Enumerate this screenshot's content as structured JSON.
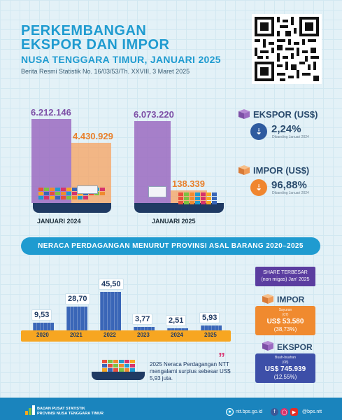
{
  "header": {
    "title_line1": "PERKEMBANGAN",
    "title_line2": "EKSPOR DAN IMPOR",
    "subtitle": "NUSA TENGGARA TIMUR, JANUARI 2025",
    "bulletin": "Berita Resmi Statistik No. 16/03/53/Th. XXVIII, 3 Maret 2025"
  },
  "colors": {
    "export": "#9b6bc1",
    "import": "#f7a15f",
    "accent_blue": "#1f9bd0",
    "bar_blue": "#3a66b7",
    "axis_orange": "#f7a621"
  },
  "chart_data": [
    {
      "type": "bar",
      "categories": [
        "JANUARI 2024",
        "JANUARI 2025"
      ],
      "series": [
        {
          "name": "EKSPOR (US$)",
          "values": [
            6212146,
            6073220
          ],
          "labels": [
            "6.212.146",
            "6.073.220"
          ]
        },
        {
          "name": "IMPOR (US$)",
          "values": [
            4430929,
            138339
          ],
          "labels": [
            "4.430.929",
            "138.339"
          ]
        }
      ]
    },
    {
      "type": "bar",
      "title": "NERACA PERDAGANGAN MENURUT PROVINSI ASAL BARANG 2020–2025",
      "categories": [
        "2020",
        "2021",
        "2022",
        "2023",
        "2024",
        "2025"
      ],
      "values": [
        9.53,
        28.7,
        45.5,
        3.77,
        2.51,
        5.93
      ],
      "labels": [
        "9,53",
        "28,70",
        "45,50",
        "3,77",
        "2,51",
        "5,93"
      ],
      "ylim": [
        0,
        50
      ]
    }
  ],
  "legend": {
    "export_title": "EKSPOR (US$)",
    "export_change": "2,24%",
    "export_note": "Dibanding Januari 2024",
    "import_title": "IMPOR (US$)",
    "import_change": "96,88%",
    "import_note": "Dibanding Januari 2024"
  },
  "share": {
    "heading_line1": "SHARE TERBESAR",
    "heading_line2": "(non migas) Jan' 2025",
    "import_title": "IMPOR",
    "import_commodity_line1": "Sayuran",
    "import_commodity_line2": "(07)",
    "import_value": "US$ 53.580",
    "import_pct": "(38,73%)",
    "export_title": "EKSPOR",
    "export_commodity_line1": "Buah-buahan",
    "export_commodity_line2": "(08)",
    "export_value": "US$ 745.939",
    "export_pct": "(12,55%)"
  },
  "note": "2025 Neraca Perdagangan NTT mengalami surplus sebesar US$ 5,93 juta.",
  "footer": {
    "org_line1": "BADAN PUSAT STATISTIK",
    "org_line2": "PROVINSI NUSA TENGGARA TIMUR",
    "website": "ntt.bps.go.id",
    "handle": "@bps.ntt"
  }
}
